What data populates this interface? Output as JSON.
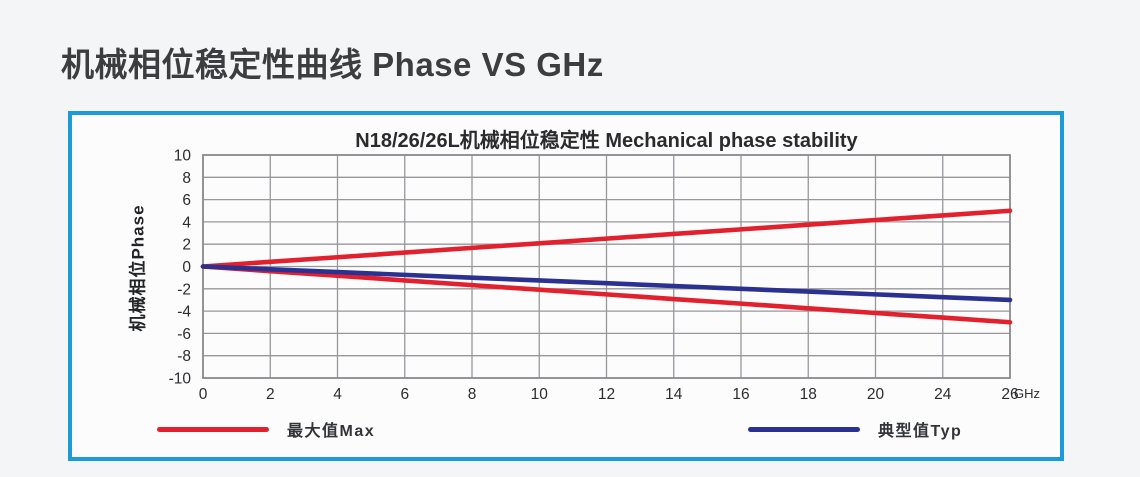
{
  "page": {
    "heading": "机械相位稳定性曲线 Phase VS GHz",
    "background": "#f4f5f6"
  },
  "chart_box": {
    "border_color": "#1c9bd8",
    "background": "#fcfcfd"
  },
  "chart_data": {
    "type": "line",
    "title": "N18/26/26L机械相位稳定性 Mechanical phase stability",
    "ylabel": "机械相位Phase",
    "xlabel": "",
    "x_unit": "GHz",
    "categories": [
      0,
      2,
      4,
      6,
      8,
      10,
      12,
      14,
      16,
      18,
      20,
      24,
      26
    ],
    "y_ticks": [
      10,
      8,
      6,
      4,
      2,
      0,
      -2,
      -4,
      -6,
      -8,
      -10
    ],
    "ylim": [
      -10,
      10
    ],
    "grid": true,
    "grid_color": "#97989b",
    "frame_color": "#8b8c8f",
    "tick_label_color": "#2b2c2e",
    "series": [
      {
        "name": "最大值Max (upper)",
        "color": "#e2202e",
        "values": [
          0,
          0.42,
          0.83,
          1.25,
          1.67,
          2.08,
          2.5,
          2.92,
          3.33,
          3.75,
          4.17,
          4.58,
          5
        ]
      },
      {
        "name": "最大值Max (lower)",
        "color": "#e2202e",
        "values": [
          0,
          -0.42,
          -0.83,
          -1.25,
          -1.67,
          -2.08,
          -2.5,
          -2.92,
          -3.33,
          -3.75,
          -4.17,
          -4.58,
          -5
        ]
      },
      {
        "name": "典型值Typ",
        "color": "#2b3191",
        "values": [
          0,
          -0.25,
          -0.5,
          -0.75,
          -1,
          -1.25,
          -1.5,
          -1.75,
          -2,
          -2.25,
          -2.5,
          -2.75,
          -3
        ]
      }
    ],
    "legend": [
      {
        "label": "最大值Max",
        "color": "#e2202e"
      },
      {
        "label": "典型值Typ",
        "color": "#2b3191"
      }
    ],
    "legend_position": "bottom"
  }
}
